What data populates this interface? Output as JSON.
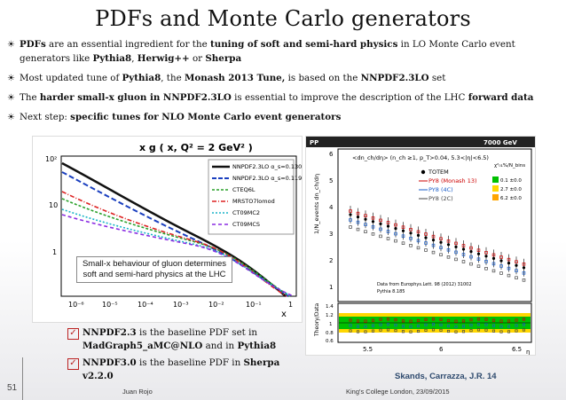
{
  "title": "PDFs and Monte Carlo generators",
  "bullets": [
    {
      "parts": [
        {
          "t": "PDFs",
          "b": true
        },
        {
          "t": " are an essential ingredient for the ",
          "b": false
        },
        {
          "t": "tuning of soft and semi-hard physics",
          "b": true
        },
        {
          "t": " in LO Monte Carlo event generators like ",
          "b": false
        },
        {
          "t": "Pythia8",
          "b": true
        },
        {
          "t": ", ",
          "b": false
        },
        {
          "t": "Herwig++",
          "b": true
        },
        {
          "t": " or ",
          "b": false
        },
        {
          "t": "Sherpa",
          "b": true
        }
      ]
    },
    {
      "parts": [
        {
          "t": "Most updated tune of ",
          "b": false
        },
        {
          "t": "Pythia8",
          "b": true
        },
        {
          "t": ", the ",
          "b": false
        },
        {
          "t": "Monash 2013 Tune,",
          "b": true
        },
        {
          "t": " is based on the ",
          "b": false
        },
        {
          "t": "NNPDF2.3LO",
          "b": true
        },
        {
          "t": " set",
          "b": false
        }
      ]
    },
    {
      "parts": [
        {
          "t": "The ",
          "b": false
        },
        {
          "t": "harder small-x gluon in NNPDF2.3LO",
          "b": true
        },
        {
          "t": " is essential to improve the description of the LHC ",
          "b": false
        },
        {
          "t": "forward data",
          "b": true
        }
      ]
    },
    {
      "parts": [
        {
          "t": "Next step: ",
          "b": false
        },
        {
          "t": "specific tunes for NLO Monte Carlo event generators",
          "b": true
        }
      ]
    }
  ],
  "left_plot": {
    "title": "x g ( x, Q² = 2 GeV² )",
    "legend": [
      "NNPDF2.3LO α_s=0.130",
      "NNPDF2.3LO α_s=0.119",
      "CTEQ6L",
      "MRSTO7lomod",
      "CT09MC2",
      "CT09MCS"
    ],
    "yticks": [
      "10²",
      "10",
      "1"
    ],
    "xticks": [
      "10⁻⁶",
      "10⁻⁵",
      "10⁻⁴",
      "10⁻³",
      "10⁻²",
      "10⁻¹",
      "1"
    ],
    "xlabel": "x",
    "caption_line1": "Small-x behaviour of gluon determines",
    "caption_line2": "soft and semi-hard physics at the LHC"
  },
  "right_plot": {
    "header_left": "PP",
    "header_right": "7000 GeV",
    "subtitle": "<dn_ch/dη> (n_ch ≥1, p_T>0.04, 5.3<|η|<6.5)",
    "legend": [
      "TOTEM",
      "PY8 (Monash 13)",
      "PY8 (4C)",
      "PY8 (2C)"
    ],
    "chi2_header": "χ²₀₁%/N_bins",
    "chi2": [
      "0.1 ±0.0",
      "2.7 ±0.0",
      "6.2 ±0.0"
    ],
    "yticks_top": [
      "6",
      "5",
      "4",
      "3",
      "2",
      "1"
    ],
    "yticks_bottom": [
      "1.4",
      "1.2",
      "1",
      "0.8",
      "0.6"
    ],
    "xticks": [
      "5.5",
      "6",
      "6.5"
    ],
    "xlabel": "η",
    "ylabel_top": "1/N_events dn_ch/dη",
    "ylabel_bottom": "Theory/Data",
    "data_note1": "Data from Europhys.Lett. 98 (2012) 31002",
    "data_note2": "Pythia 8.185"
  },
  "checks": [
    {
      "parts": [
        {
          "t": "NNPDF2.3",
          "b": true
        },
        {
          "t": " is the baseline PDF set in ",
          "b": false
        },
        {
          "t": "MadGraph5_aMC@NLO",
          "b": true
        },
        {
          "t": " and in ",
          "b": false
        },
        {
          "t": "Pythia8",
          "b": true
        }
      ]
    },
    {
      "parts": [
        {
          "t": "NNPDF3.0",
          "b": true
        },
        {
          "t": " is the baseline PDF in ",
          "b": false
        },
        {
          "t": "Sherpa v2.2.0",
          "b": true
        }
      ]
    }
  ],
  "credit": "Skands, Carrazza, J.R. 14",
  "footer": {
    "page": "51",
    "author": "Juan Rojo",
    "venue": "King's College London, 23/09/2015"
  }
}
